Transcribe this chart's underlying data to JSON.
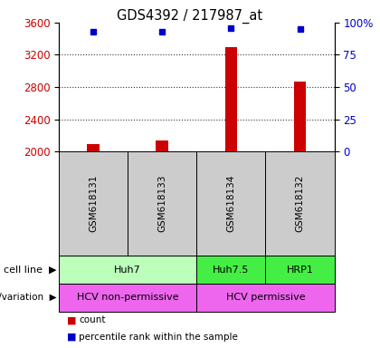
{
  "title": "GDS4392 / 217987_at",
  "samples": [
    "GSM618131",
    "GSM618133",
    "GSM618134",
    "GSM618132"
  ],
  "counts": [
    2090,
    2140,
    3290,
    2870
  ],
  "percentiles": [
    93,
    93,
    96,
    95
  ],
  "ylim_left": [
    2000,
    3600
  ],
  "ylim_right": [
    0,
    100
  ],
  "yticks_left": [
    2000,
    2400,
    2800,
    3200,
    3600
  ],
  "yticks_right": [
    0,
    25,
    50,
    75,
    100
  ],
  "bar_color": "#cc0000",
  "dot_color": "#0000cc",
  "bar_bottom": 2000,
  "bar_width": 0.18,
  "cell_lines": [
    {
      "label": "Huh7",
      "samples": [
        0,
        1
      ],
      "color": "#bbffbb"
    },
    {
      "label": "Huh7.5",
      "samples": [
        2
      ],
      "color": "#44ee44"
    },
    {
      "label": "HRP1",
      "samples": [
        3
      ],
      "color": "#44ee44"
    }
  ],
  "genotypes": [
    {
      "label": "HCV non-permissive",
      "samples": [
        0,
        1
      ],
      "color": "#ee66ee"
    },
    {
      "label": "HCV permissive",
      "samples": [
        2,
        3
      ],
      "color": "#ee66ee"
    }
  ],
  "legend_count_color": "#cc0000",
  "legend_dot_color": "#0000cc",
  "axis_left_color": "#cc0000",
  "axis_right_color": "#0000cc",
  "bg_color": "#ffffff",
  "grid_color": "#333333",
  "sample_box_color": "#cccccc"
}
